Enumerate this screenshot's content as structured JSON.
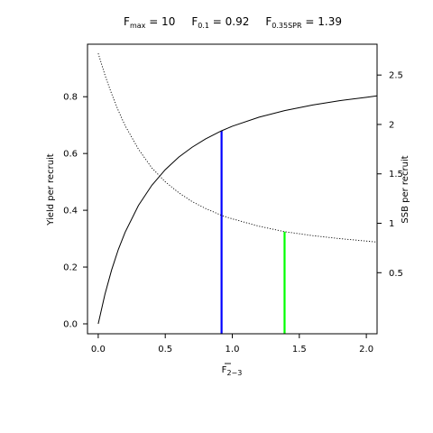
{
  "chart_data": {
    "type": "line",
    "title_parts": [
      {
        "main": "F",
        "sub": "max",
        "rest": " = 10"
      },
      {
        "main": "F",
        "sub": "0.1",
        "rest": " = 0.92"
      },
      {
        "main": "F",
        "sub": "0.35SPR",
        "rest": " = 1.39"
      }
    ],
    "xlabel": {
      "main": "F",
      "sub": "2−3",
      "overbar": true
    },
    "ylabel_left": "Yield per recruit",
    "ylabel_right": "SSB per recruit",
    "xlim": [
      -0.08,
      2.08
    ],
    "ylim_left": [
      -0.035,
      0.985
    ],
    "ylim_right": [
      -0.118,
      2.812
    ],
    "x_ticks": [
      0.0,
      0.5,
      1.0,
      1.5,
      2.0
    ],
    "x_tick_labels": [
      "0.0",
      "0.5",
      "1.0",
      "1.5",
      "2.0"
    ],
    "y_left_ticks": [
      0.0,
      0.2,
      0.4,
      0.6,
      0.8
    ],
    "y_left_tick_labels": [
      "0.0",
      "0.2",
      "0.4",
      "0.6",
      "0.8"
    ],
    "y_right_ticks": [
      0.5,
      1.0,
      1.5,
      2.0,
      2.5
    ],
    "y_right_tick_labels": [
      "0.5",
      "1",
      "1.5",
      "2",
      "2.5"
    ],
    "series": [
      {
        "axis": "left",
        "style": "solid",
        "color": "#000000",
        "x": [
          0.0,
          0.05,
          0.1,
          0.15,
          0.2,
          0.3,
          0.4,
          0.5,
          0.6,
          0.7,
          0.8,
          0.92,
          1.0,
          1.2,
          1.39,
          1.6,
          1.8,
          2.0,
          2.08
        ],
        "y": [
          0.0,
          0.104,
          0.19,
          0.262,
          0.322,
          0.417,
          0.488,
          0.543,
          0.587,
          0.622,
          0.651,
          0.68,
          0.696,
          0.728,
          0.751,
          0.771,
          0.786,
          0.798,
          0.803
        ]
      },
      {
        "axis": "right",
        "style": "dotted",
        "color": "#000000",
        "x": [
          0.0,
          0.05,
          0.1,
          0.15,
          0.2,
          0.3,
          0.4,
          0.5,
          0.6,
          0.7,
          0.8,
          0.92,
          1.0,
          1.2,
          1.39,
          1.6,
          1.8,
          2.0,
          2.08
        ],
        "y": [
          2.72,
          2.5,
          2.31,
          2.14,
          1.99,
          1.75,
          1.56,
          1.42,
          1.31,
          1.22,
          1.15,
          1.08,
          1.045,
          0.97,
          0.915,
          0.875,
          0.845,
          0.82,
          0.81
        ]
      }
    ],
    "reference_lines": [
      {
        "x": 0.92,
        "axis": "left",
        "y_top": 0.68,
        "color": "#0000ff"
      },
      {
        "x": 1.39,
        "axis": "right",
        "y_top": 0.915,
        "color": "#00ff00"
      }
    ]
  }
}
